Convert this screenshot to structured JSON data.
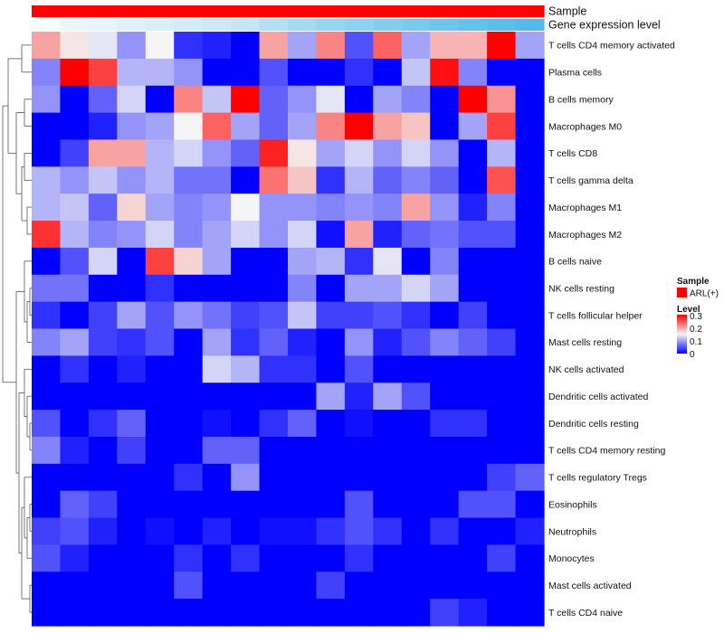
{
  "chart_data": {
    "type": "heatmap",
    "rows": [
      "T cells CD4 memory activated",
      "Plasma cells",
      "B cells memory",
      "Macrophages M0",
      "T cells CD8",
      "T cells gamma delta",
      "Macrophages M1",
      "Macrophages M2",
      "B cells naive",
      "NK cells resting",
      "T cells follicular helper",
      "Mast cells resting",
      "NK cells activated",
      "Dendritic cells activated",
      "Dendritic cells resting",
      "T cells CD4 memory resting",
      "T cells regulatory  Tregs",
      "Eosinophils",
      "Neutrophils",
      "Monocytes",
      "Mast cells activated",
      "T cells CD4 naive"
    ],
    "n_columns": 18,
    "values": [
      [
        0.2,
        0.16,
        0.14,
        0.09,
        0.15,
        0.03,
        0.02,
        0.0,
        0.2,
        0.1,
        0.22,
        0.05,
        0.24,
        0.1,
        0.19,
        0.19,
        0.3,
        0.1
      ],
      [
        0.08,
        0.3,
        0.26,
        0.11,
        0.11,
        0.09,
        0.0,
        0.0,
        0.05,
        0.0,
        0.0,
        0.03,
        0.0,
        0.12,
        0.29,
        0.08,
        0.0,
        0.0
      ],
      [
        0.09,
        0.0,
        0.06,
        0.13,
        0.0,
        0.22,
        0.12,
        0.3,
        0.06,
        0.09,
        0.14,
        0.0,
        0.1,
        0.08,
        0.0,
        0.3,
        0.21,
        0.0
      ],
      [
        0.0,
        0.0,
        0.02,
        0.09,
        0.1,
        0.15,
        0.24,
        0.1,
        0.06,
        0.1,
        0.22,
        0.3,
        0.2,
        0.18,
        0.0,
        0.1,
        0.26,
        0.0
      ],
      [
        0.0,
        0.04,
        0.2,
        0.2,
        0.11,
        0.13,
        0.09,
        0.06,
        0.28,
        0.16,
        0.1,
        0.13,
        0.09,
        0.13,
        0.09,
        0.0,
        0.11,
        0.0
      ],
      [
        0.11,
        0.09,
        0.12,
        0.09,
        0.11,
        0.07,
        0.07,
        0.0,
        0.23,
        0.18,
        0.03,
        0.11,
        0.06,
        0.08,
        0.06,
        0.0,
        0.25,
        0.0
      ],
      [
        0.11,
        0.12,
        0.06,
        0.17,
        0.1,
        0.08,
        0.09,
        0.15,
        0.09,
        0.09,
        0.08,
        0.09,
        0.08,
        0.2,
        0.09,
        0.02,
        0.08,
        0.0
      ],
      [
        0.27,
        0.11,
        0.08,
        0.09,
        0.13,
        0.08,
        0.1,
        0.13,
        0.09,
        0.13,
        0.01,
        0.2,
        0.02,
        0.06,
        0.07,
        0.05,
        0.05,
        0.0
      ],
      [
        0.0,
        0.05,
        0.13,
        0.0,
        0.26,
        0.17,
        0.1,
        0.0,
        0.0,
        0.1,
        0.11,
        0.03,
        0.14,
        0.0,
        0.08,
        0.0,
        0.0,
        0.0
      ],
      [
        0.07,
        0.07,
        0.0,
        0.0,
        0.03,
        0.0,
        0.0,
        0.0,
        0.0,
        0.08,
        0.0,
        0.1,
        0.1,
        0.13,
        0.1,
        0.0,
        0.0,
        0.0
      ],
      [
        0.03,
        0.0,
        0.04,
        0.1,
        0.05,
        0.09,
        0.07,
        0.04,
        0.05,
        0.12,
        0.04,
        0.04,
        0.05,
        0.03,
        0.0,
        0.04,
        0.0,
        0.0
      ],
      [
        0.08,
        0.1,
        0.04,
        0.03,
        0.05,
        0.0,
        0.1,
        0.03,
        0.06,
        0.02,
        0.0,
        0.09,
        0.02,
        0.05,
        0.08,
        0.06,
        0.04,
        0.0
      ],
      [
        0.0,
        0.03,
        0.0,
        0.02,
        0.0,
        0.0,
        0.13,
        0.11,
        0.03,
        0.03,
        0.0,
        0.05,
        0.0,
        0.0,
        0.0,
        0.0,
        0.0,
        0.0
      ],
      [
        0.0,
        0.0,
        0.0,
        0.0,
        0.0,
        0.0,
        0.0,
        0.0,
        0.0,
        0.0,
        0.1,
        0.02,
        0.1,
        0.05,
        0.0,
        0.0,
        0.0,
        0.0
      ],
      [
        0.05,
        0.0,
        0.03,
        0.06,
        0.0,
        0.0,
        0.01,
        0.0,
        0.03,
        0.06,
        0.0,
        0.01,
        0.0,
        0.0,
        0.03,
        0.03,
        0.0,
        0.0
      ],
      [
        0.08,
        0.02,
        0.0,
        0.04,
        0.0,
        0.0,
        0.06,
        0.06,
        0.0,
        0.0,
        0.0,
        0.0,
        0.0,
        0.0,
        0.0,
        0.0,
        0.0,
        0.0
      ],
      [
        0.0,
        0.0,
        0.0,
        0.0,
        0.0,
        0.03,
        0.0,
        0.09,
        0.0,
        0.0,
        0.0,
        0.0,
        0.0,
        0.0,
        0.0,
        0.0,
        0.04,
        0.06
      ],
      [
        0.0,
        0.06,
        0.04,
        0.0,
        0.0,
        0.0,
        0.0,
        0.0,
        0.0,
        0.0,
        0.0,
        0.05,
        0.0,
        0.0,
        0.0,
        0.05,
        0.05,
        0.0
      ],
      [
        0.04,
        0.05,
        0.02,
        0.0,
        0.01,
        0.0,
        0.02,
        0.0,
        0.01,
        0.01,
        0.03,
        0.05,
        0.03,
        0.0,
        0.03,
        0.0,
        0.0,
        0.02
      ],
      [
        0.05,
        0.02,
        0.0,
        0.0,
        0.0,
        0.03,
        0.0,
        0.03,
        0.0,
        0.0,
        0.0,
        0.03,
        0.0,
        0.0,
        0.0,
        0.0,
        0.04,
        0.0
      ],
      [
        0.0,
        0.0,
        0.0,
        0.0,
        0.0,
        0.05,
        0.0,
        0.0,
        0.0,
        0.0,
        0.04,
        0.0,
        0.0,
        0.0,
        0.0,
        0.0,
        0.0,
        0.0
      ],
      [
        0.0,
        0.0,
        0.0,
        0.0,
        0.0,
        0.0,
        0.0,
        0.0,
        0.0,
        0.0,
        0.0,
        0.0,
        0.0,
        0.0,
        0.04,
        0.02,
        0.0,
        0.0
      ]
    ],
    "color_scale": {
      "min": 0,
      "max": 0.3,
      "low": "#0000ff",
      "mid": "#f5f5f5",
      "high": "#ff0000",
      "mid_value": 0.15
    },
    "annotations": [
      {
        "name": "Sample",
        "colors": [
          "#ff0000",
          "#ff0000",
          "#ff0000",
          "#ff0000",
          "#ff0000",
          "#ff0000",
          "#ff0000",
          "#ff0000",
          "#ff0000",
          "#ff0000",
          "#ff0000",
          "#ff0000",
          "#ff0000",
          "#ff0000",
          "#ff0000",
          "#ff0000",
          "#ff0000",
          "#ff0000"
        ]
      },
      {
        "name": "Gene expression level",
        "colors": [
          "#f7fcfe",
          "#eaf6fb",
          "#e6f4fb",
          "#dff1fa",
          "#d9eff9",
          "#d2ecf8",
          "#cde9f7",
          "#c6e6f6",
          "#b5e0f4",
          "#a5daf3",
          "#98d5f2",
          "#8ed1f1",
          "#85cdf0",
          "#7ac9ef",
          "#70c5ee",
          "#66c1ed",
          "#5dbeec",
          "#54baeb"
        ]
      }
    ],
    "legend": {
      "sample": {
        "title": "Sample",
        "entries": [
          {
            "label": "ARL(+)",
            "color": "#ff0000"
          }
        ]
      },
      "level": {
        "title": "Level",
        "ticks": [
          "0.3",
          "0.2",
          "0.1",
          "0"
        ]
      }
    }
  }
}
